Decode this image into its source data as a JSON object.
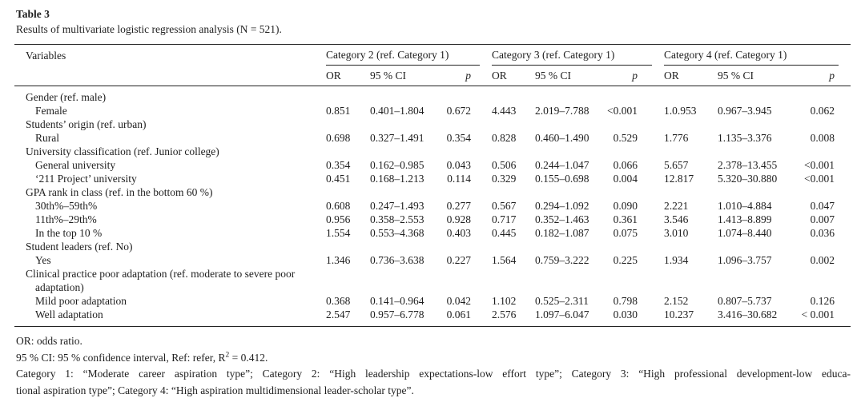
{
  "table": {
    "label": "Table 3",
    "caption": "Results of multivariate logistic regression analysis (N = 521).",
    "columns": {
      "variables": "Variables",
      "groups": [
        {
          "label": "Category 2 (ref. Category 1)"
        },
        {
          "label": "Category 3 (ref. Category 1)"
        },
        {
          "label": "Category 4 (ref. Category 1)"
        }
      ],
      "sub": [
        "OR",
        "95 % CI",
        "p"
      ]
    },
    "rows": [
      {
        "type": "group",
        "label": "Gender (ref. male)"
      },
      {
        "type": "data",
        "label": "Female",
        "cells": [
          "0.851",
          "0.401–1.804",
          "0.672",
          "4.443",
          "2.019–7.788",
          "<0.001",
          "1.0.953",
          "0.967–3.945",
          "0.062"
        ]
      },
      {
        "type": "group",
        "label": "Students’ origin (ref. urban)"
      },
      {
        "type": "data",
        "label": "Rural",
        "cells": [
          "0.698",
          "0.327–1.491",
          "0.354",
          "0.828",
          "0.460–1.490",
          "0.529",
          "1.776",
          "1.135–3.376",
          "0.008"
        ]
      },
      {
        "type": "group",
        "label": "University classification (ref. Junior college)"
      },
      {
        "type": "data",
        "label": "General university",
        "cells": [
          "0.354",
          "0.162–0.985",
          "0.043",
          "0.506",
          "0.244–1.047",
          "0.066",
          "5.657",
          "2.378–13.455",
          "<0.001"
        ]
      },
      {
        "type": "data",
        "label": "‘211 Project’ university",
        "cells": [
          "0.451",
          "0.168–1.213",
          "0.114",
          "0.329",
          "0.155–0.698",
          "0.004",
          "12.817",
          "5.320–30.880",
          "<0.001"
        ]
      },
      {
        "type": "group",
        "label": "GPA rank in class (ref. in the bottom 60 %)"
      },
      {
        "type": "data",
        "label": "30th%–59th%",
        "cells": [
          "0.608",
          "0.247–1.493",
          "0.277",
          "0.567",
          "0.294–1.092",
          "0.090",
          "2.221",
          "1.010–4.884",
          "0.047"
        ]
      },
      {
        "type": "data",
        "label": "11th%–29th%",
        "cells": [
          "0.956",
          "0.358–2.553",
          "0.928",
          "0.717",
          "0.352–1.463",
          "0.361",
          "3.546",
          "1.413–8.899",
          "0.007"
        ]
      },
      {
        "type": "data",
        "label": "In the top 10 %",
        "cells": [
          "1.554",
          "0.553–4.368",
          "0.403",
          "0.445",
          "0.182–1.087",
          "0.075",
          "3.010",
          "1.074–8.440",
          "0.036"
        ]
      },
      {
        "type": "group",
        "label": "Student leaders (ref. No)"
      },
      {
        "type": "data",
        "label": "Yes",
        "cells": [
          "1.346",
          "0.736–3.638",
          "0.227",
          "1.564",
          "0.759–3.222",
          "0.225",
          "1.934",
          "1.096–3.757",
          "0.002"
        ]
      },
      {
        "type": "group",
        "label": "Clinical practice poor adaptation (ref. moderate to severe poor adaptation)"
      },
      {
        "type": "data",
        "label": "Mild poor adaptation",
        "cells": [
          "0.368",
          "0.141–0.964",
          "0.042",
          "1.102",
          "0.525–2.311",
          "0.798",
          "2.152",
          "0.807–5.737",
          "0.126"
        ]
      },
      {
        "type": "data",
        "label": "Well adaptation",
        "cells": [
          "2.547",
          "0.957–6.778",
          "0.061",
          "2.576",
          "1.097–6.047",
          "0.030",
          "10.237",
          "3.416–30.682",
          "< 0.001"
        ]
      }
    ]
  },
  "footnotes": {
    "fn1": "OR: odds ratio.",
    "fn2": {
      "prefix": "95 % CI: 95 % confidence interval, Ref: refer, R",
      "sup": "2",
      "suffix": " = 0.412."
    },
    "fn3_line1": "Category 1: “Moderate career aspiration type”; Category 2: “High leadership expectations-low effort type”; Category 3: “High professional development-low educa-",
    "fn3_line2": "tional aspiration type”; Category 4: “High aspiration multidimensional leader-scholar type”."
  }
}
